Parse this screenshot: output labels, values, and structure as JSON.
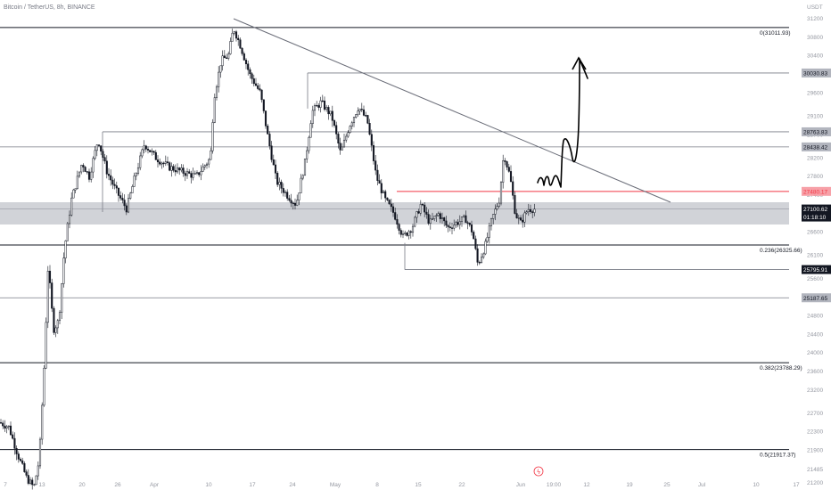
{
  "header": {
    "title": "Bitcoin / TetherUS, 8h, BINANCE",
    "currency": "USDT"
  },
  "chart_data": {
    "type": "candlestick",
    "y_range": [
      21200,
      31450
    ],
    "x_labels": [
      "7",
      "13",
      "20",
      "26",
      "Apr",
      "10",
      "17",
      "24",
      "May",
      "8",
      "15",
      "22",
      "Jun",
      "19:00",
      "12",
      "19",
      "25",
      "Jul",
      "10",
      "17"
    ],
    "y_ticks": [
      31200,
      30800,
      30400,
      30000,
      29600,
      29100,
      28700,
      28200,
      27800,
      27400,
      27000,
      26600,
      26100,
      25600,
      25200,
      24800,
      24400,
      24000,
      23600,
      23200,
      22700,
      22300,
      21900,
      21485,
      21200
    ],
    "fib_levels": [
      {
        "label": "0(31011.93)",
        "price": 31011.93
      },
      {
        "label": "0.236(26325.66)",
        "price": 26325.66
      },
      {
        "label": "0.382(23788.29)",
        "price": 23788.29
      },
      {
        "label": "0.5(21917.37)",
        "price": 21917.37
      }
    ],
    "horizontal_levels": [
      {
        "label": "30030.83",
        "price": 30030.83
      },
      {
        "label": "28763.83",
        "price": 28763.83
      },
      {
        "label": "28438.42",
        "price": 28438.42
      },
      {
        "label": "27480.17",
        "price": 27480.17
      },
      {
        "label": "25795.91",
        "price": 25795.91
      },
      {
        "label": "25187.65",
        "price": 25187.65
      }
    ],
    "current_price": {
      "price": "27100.62",
      "countdown": "01:18:10"
    },
    "support_zone": [
      26050,
      26650
    ],
    "trendline": {
      "start": {
        "date": "Apr 12",
        "price": 31030
      },
      "end": {
        "date": "Jun 20",
        "price": 26650
      }
    },
    "colors": {
      "up": "#131722",
      "down": "#131722",
      "resistance": "#f23645",
      "zone": "#b2b5be"
    }
  },
  "icons": {
    "marker": "lightning-icon"
  }
}
